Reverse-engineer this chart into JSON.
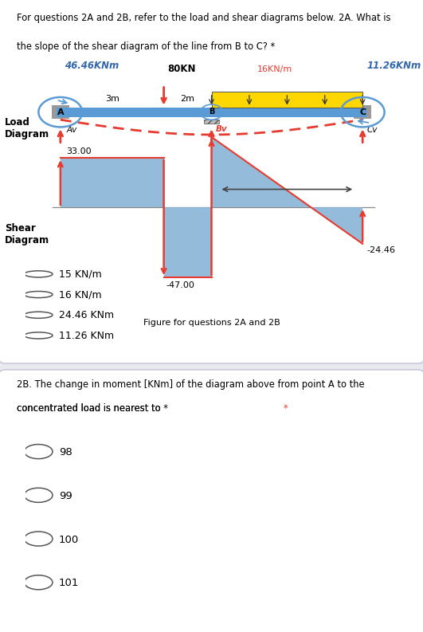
{
  "bg_color": "#e8eaf0",
  "panel1_bg": "#ffffff",
  "panel2_bg": "#ffffff",
  "question1_line1": "For questions 2A and 2B, refer to the load and shear diagrams below. 2A. What is",
  "question1_line2": "the slope of the shear diagram of the line from B to C? *",
  "fig_caption": "Figure for questions 2A and 2B",
  "label_46": "46.46KNm",
  "label_80": "80KN",
  "label_16": "16KN/m",
  "label_1126": "11.26KNm",
  "label_3m": "3m",
  "label_2m": "2m",
  "label_A": "A",
  "label_B": "B",
  "label_C": "C",
  "label_Av": "Av",
  "label_Bv": "Bv",
  "label_Cv": "Cv",
  "label_load": "Load\nDiagram",
  "label_shear": "Shear\nDiagram",
  "shear_33": "33.00",
  "shear_n47": "-47.00",
  "shear_n2446": "-24.46",
  "choices_2a": [
    "15 KN/m",
    "16 KN/m",
    "24.46 KNm",
    "11.26 KNm"
  ],
  "question2_line1": "2B. The change in moment [KNm] of the diagram above from point A to the",
  "question2_line2": "concentrated load is nearest to *",
  "choices_2b": [
    "98",
    "99",
    "100",
    "101"
  ],
  "blue_beam": "#5b9bd5",
  "yellow_load": "#ffd700",
  "red_arrow": "#e63b2e",
  "blue_text": "#3366aa",
  "shear_fill": "#8ab4d8",
  "gray_support": "#999999",
  "panel_border": "#c8cadc"
}
